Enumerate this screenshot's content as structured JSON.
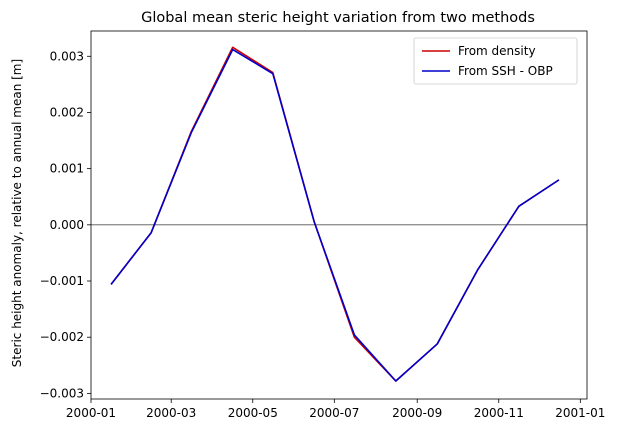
{
  "chart_data": {
    "type": "line",
    "title": "Global mean steric height variation from two methods",
    "xlabel": "",
    "ylabel": "Steric height anomaly, relative to annual mean [m]",
    "x": [
      "2000-01-16",
      "2000-02-15",
      "2000-03-16",
      "2000-04-16",
      "2000-05-16",
      "2000-06-16",
      "2000-07-16",
      "2000-08-16",
      "2000-09-16",
      "2000-10-16",
      "2000-11-16",
      "2000-12-16"
    ],
    "series": [
      {
        "name": "From density",
        "color": "#cc0000",
        "values": [
          -0.00106,
          -0.00014,
          0.00166,
          0.00316,
          0.00271,
          5e-05,
          -0.002,
          -0.00278,
          -0.00212,
          -0.00081,
          0.00033,
          0.0008
        ]
      },
      {
        "name": "From SSH - OBP",
        "color": "#0000cc",
        "values": [
          -0.00106,
          -0.00014,
          0.00164,
          0.00312,
          0.00269,
          5e-05,
          -0.00196,
          -0.00278,
          -0.00212,
          -0.00081,
          0.00033,
          0.0008
        ]
      }
    ],
    "xlim": [
      "2000-01-01",
      "2001-01-06"
    ],
    "ylim": [
      -0.0031,
      0.00345
    ],
    "xticks": [
      "2000-01-01",
      "2000-03-01",
      "2000-05-01",
      "2000-07-01",
      "2000-09-01",
      "2000-11-01",
      "2001-01-01"
    ],
    "xtick_labels": [
      "2000-01",
      "2000-03",
      "2000-05",
      "2000-07",
      "2000-09",
      "2000-11",
      "2001-01"
    ],
    "yticks": [
      -0.003,
      -0.002,
      -0.001,
      0.0,
      0.001,
      0.002,
      0.003
    ],
    "ytick_labels": [
      "−0.003",
      "−0.002",
      "−0.001",
      "0.000",
      "0.001",
      "0.002",
      "0.003"
    ],
    "zero_line": true,
    "grid": false,
    "legend_position": "top-right"
  }
}
